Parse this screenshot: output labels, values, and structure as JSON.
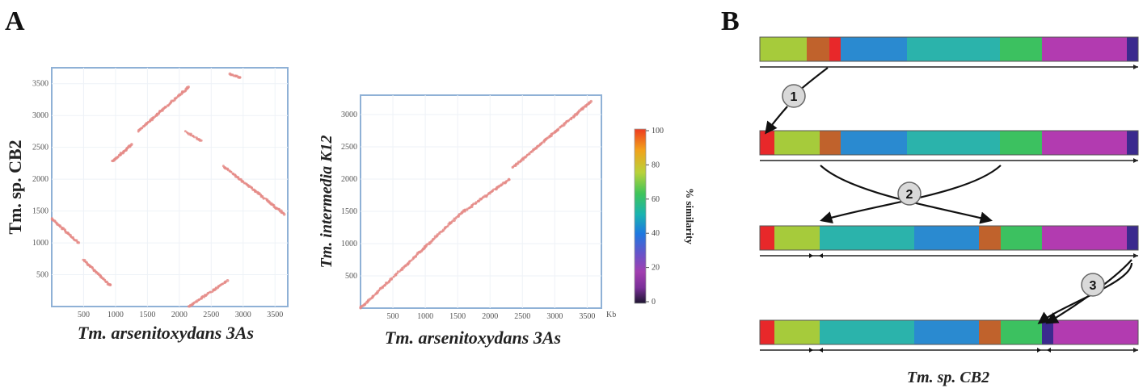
{
  "panel_a": {
    "letter": "A",
    "plot1": {
      "ylabel": "Tm. sp. CB2",
      "xlabel": "Tm. arsenitoxydans 3As",
      "x_ticks": [
        "500",
        "1000",
        "1500",
        "2000",
        "2500",
        "3000",
        "3500"
      ],
      "y_ticks": [
        "500",
        "1000",
        "1500",
        "2000",
        "2500",
        "3000",
        "3500"
      ]
    },
    "plot2": {
      "ylabel": "Tm. intermedia K12",
      "xlabel": "Tm. arsenitoxydans 3As",
      "x_ticks": [
        "500",
        "1000",
        "1500",
        "2000",
        "2500",
        "3000",
        "3500"
      ],
      "y_ticks": [
        "500",
        "1000",
        "1500",
        "2000",
        "2500",
        "3000"
      ],
      "x_unit": "Kb"
    },
    "colorbar": {
      "label": "% similarity",
      "ticks": [
        "100",
        "80",
        "60",
        "40",
        "20",
        "0"
      ],
      "colors": [
        "#ee3b20",
        "#f2a21b",
        "#b8d23a",
        "#3fc45a",
        "#19b3b0",
        "#1e78e0",
        "#6a52c8",
        "#a23fb0",
        "#c23fb2",
        "#2b2140"
      ]
    }
  },
  "panel_b": {
    "letter": "B",
    "caption": "Tm. sp. CB2",
    "step_labels": [
      "1",
      "2",
      "3"
    ],
    "rows": [
      {
        "segments": [
          {
            "color": "#a6cb3b"
          },
          {
            "color": "#c0622c"
          },
          {
            "color": "#e8282a"
          },
          {
            "color": "#2a8ad0"
          },
          {
            "color": "#2bb3ab"
          },
          {
            "color": "#3cc160"
          },
          {
            "color": "#b23bb0"
          },
          {
            "color": "#3b2a8e"
          }
        ]
      },
      {
        "segments": [
          {
            "color": "#e8282a"
          },
          {
            "color": "#a6cb3b"
          },
          {
            "color": "#c0622c"
          },
          {
            "color": "#2a8ad0"
          },
          {
            "color": "#2bb3ab"
          },
          {
            "color": "#3cc160"
          },
          {
            "color": "#b23bb0"
          },
          {
            "color": "#3b2a8e"
          }
        ]
      },
      {
        "segments": [
          {
            "color": "#e8282a"
          },
          {
            "color": "#a6cb3b"
          },
          {
            "color": "#2bb3ab"
          },
          {
            "color": "#2a8ad0"
          },
          {
            "color": "#c0622c"
          },
          {
            "color": "#3cc160"
          },
          {
            "color": "#b23bb0"
          },
          {
            "color": "#3b2a8e"
          }
        ]
      },
      {
        "segments": [
          {
            "color": "#e8282a"
          },
          {
            "color": "#a6cb3b"
          },
          {
            "color": "#2bb3ab"
          },
          {
            "color": "#2a8ad0"
          },
          {
            "color": "#c0622c"
          },
          {
            "color": "#3cc160"
          },
          {
            "color": "#3b2a8e"
          },
          {
            "color": "#b23bb0"
          }
        ]
      }
    ]
  }
}
